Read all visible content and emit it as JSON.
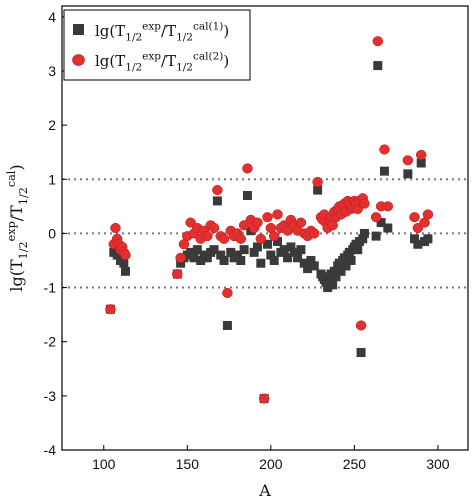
{
  "chart_data": {
    "type": "scatter",
    "xlabel": "A",
    "ylabel": "lg(T_{1/2}^{exp}/T_{1/2}^{cal})",
    "xlim": [
      75,
      318
    ],
    "ylim": [
      -4,
      4.2
    ],
    "xticks": [
      100,
      150,
      200,
      250,
      300
    ],
    "yticks": [
      -4,
      -3,
      -2,
      -1,
      0,
      1,
      2,
      3,
      4
    ],
    "reference_lines": [
      1,
      0,
      -1
    ],
    "grid": false,
    "legend_position": "top-left",
    "series": [
      {
        "name": "lg(T_{1/2}^{exp}/T_{1/2}^{cal(1)})",
        "marker": "square",
        "color": "#3a3a3a",
        "x": [
          104,
          106,
          107,
          108,
          109,
          110,
          111,
          112,
          113,
          144,
          146,
          148,
          150,
          152,
          154,
          156,
          158,
          160,
          162,
          164,
          166,
          168,
          170,
          172,
          174,
          176,
          178,
          180,
          182,
          184,
          186,
          188,
          190,
          192,
          194,
          196,
          198,
          200,
          202,
          204,
          206,
          208,
          210,
          212,
          214,
          216,
          218,
          220,
          222,
          224,
          226,
          228,
          230,
          231,
          232,
          233,
          234,
          235,
          236,
          237,
          238,
          239,
          240,
          241,
          242,
          243,
          244,
          245,
          246,
          247,
          248,
          249,
          250,
          251,
          252,
          253,
          254,
          255,
          256,
          263,
          264,
          266,
          268,
          270,
          282,
          286,
          288,
          290,
          292,
          294
        ],
        "y": [
          -1.4,
          -0.35,
          -0.2,
          -0.4,
          -0.3,
          -0.5,
          -0.45,
          -0.55,
          -0.7,
          -0.75,
          -0.55,
          -0.45,
          -0.4,
          -0.35,
          -0.45,
          -0.3,
          -0.5,
          -0.4,
          -0.45,
          -0.35,
          -0.3,
          0.6,
          -0.4,
          -0.5,
          -1.7,
          -0.35,
          -0.45,
          -0.4,
          -0.5,
          -0.3,
          0.7,
          0.05,
          -0.35,
          -0.25,
          -0.55,
          -3.05,
          -0.2,
          -0.4,
          -0.5,
          -0.15,
          -0.35,
          -0.3,
          -0.45,
          -0.25,
          -0.35,
          -0.45,
          -0.3,
          -0.55,
          -0.65,
          -0.5,
          -0.6,
          0.8,
          -0.75,
          -0.8,
          -0.85,
          -0.9,
          -1.0,
          -0.85,
          -0.75,
          -0.95,
          -0.7,
          -0.8,
          -0.6,
          -0.55,
          -0.7,
          -0.5,
          -0.45,
          -0.6,
          -0.4,
          -0.35,
          -0.5,
          -0.3,
          -0.25,
          -0.2,
          -0.3,
          -0.15,
          -2.2,
          -0.1,
          0.0,
          -0.05,
          3.1,
          0.2,
          1.15,
          0.1,
          1.1,
          -0.1,
          -0.2,
          1.3,
          -0.15,
          -0.1
        ]
      },
      {
        "name": "lg(T_{1/2}^{exp}/T_{1/2}^{cal(2)})",
        "marker": "circle",
        "color": "#e03030",
        "x": [
          104,
          106,
          107,
          108,
          109,
          110,
          111,
          112,
          113,
          144,
          146,
          148,
          150,
          152,
          154,
          156,
          158,
          160,
          162,
          164,
          166,
          168,
          170,
          172,
          174,
          176,
          178,
          180,
          182,
          184,
          186,
          188,
          190,
          192,
          194,
          196,
          198,
          200,
          202,
          204,
          206,
          208,
          210,
          212,
          214,
          216,
          218,
          220,
          222,
          224,
          226,
          228,
          230,
          231,
          232,
          233,
          234,
          235,
          236,
          237,
          238,
          239,
          240,
          241,
          242,
          243,
          244,
          245,
          246,
          247,
          248,
          249,
          250,
          251,
          252,
          253,
          254,
          255,
          256,
          263,
          264,
          266,
          268,
          270,
          282,
          286,
          288,
          290,
          292,
          294
        ],
        "y": [
          -1.4,
          -0.2,
          0.1,
          -0.1,
          -0.2,
          -0.3,
          -0.25,
          -0.35,
          -0.4,
          -0.75,
          -0.45,
          -0.2,
          -0.05,
          0.2,
          0.0,
          0.1,
          -0.1,
          0.05,
          -0.05,
          0.15,
          0.1,
          0.8,
          -0.05,
          -0.1,
          -1.1,
          0.05,
          -0.05,
          0.0,
          -0.1,
          0.15,
          1.2,
          0.25,
          0.1,
          0.2,
          -0.1,
          -3.05,
          0.3,
          0.1,
          -0.05,
          0.35,
          0.1,
          0.15,
          0.05,
          0.25,
          0.15,
          0.05,
          0.2,
          0.0,
          -0.05,
          0.05,
          0.0,
          0.95,
          0.3,
          0.25,
          0.35,
          0.2,
          0.1,
          0.25,
          0.3,
          0.15,
          0.4,
          0.3,
          0.45,
          0.5,
          0.35,
          0.5,
          0.55,
          0.4,
          0.6,
          0.55,
          0.45,
          0.5,
          0.6,
          0.55,
          0.45,
          0.6,
          -1.7,
          0.65,
          0.55,
          0.3,
          3.55,
          0.5,
          1.55,
          0.5,
          1.35,
          0.3,
          0.1,
          1.45,
          0.2,
          0.35
        ]
      }
    ]
  }
}
